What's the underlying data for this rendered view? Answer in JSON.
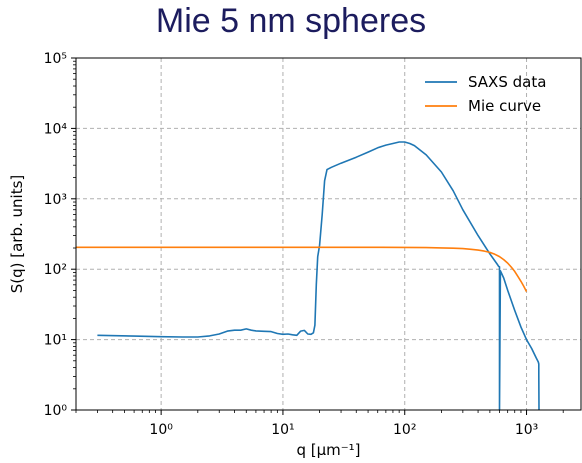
{
  "chart_data": {
    "type": "line",
    "title": "Mie 5 nm spheres",
    "xlabel": "q [μm⁻¹]",
    "ylabel": "S(q) [arb. units]",
    "xscale": "log",
    "yscale": "log",
    "xlim": [
      0.2,
      2800
    ],
    "ylim": [
      1,
      100000
    ],
    "grid": true,
    "legend_position": "top-right",
    "x_ticks": [
      {
        "value": 1,
        "label": "10⁰"
      },
      {
        "value": 10,
        "label": "10¹"
      },
      {
        "value": 100,
        "label": "10²"
      },
      {
        "value": 1000,
        "label": "10³"
      }
    ],
    "y_ticks": [
      {
        "value": 1,
        "label": "10⁰"
      },
      {
        "value": 10,
        "label": "10¹"
      },
      {
        "value": 100,
        "label": "10²"
      },
      {
        "value": 1000,
        "label": "10³"
      },
      {
        "value": 10000,
        "label": "10⁴"
      },
      {
        "value": 100000,
        "label": "10⁵"
      }
    ],
    "series": [
      {
        "name": "SAXS data",
        "color": "#1f77b4",
        "x": [
          0.3,
          0.6,
          1.0,
          1.5,
          2.0,
          2.5,
          3.0,
          3.5,
          4.0,
          4.5,
          5.0,
          5.5,
          6.0,
          7.0,
          8.0,
          9.0,
          10,
          11,
          12,
          13,
          14,
          15,
          16,
          17,
          17.8,
          18.3,
          18.8,
          19.3,
          20,
          21,
          22,
          23,
          25,
          30,
          40,
          50,
          60,
          70,
          80,
          90,
          100,
          110,
          120,
          150,
          200,
          250,
          300,
          400,
          500,
          580,
          590,
          600,
          600,
          610,
          650,
          700,
          800,
          900,
          1000,
          1100,
          1200,
          1250,
          1260,
          1260,
          1265
        ],
        "y": [
          11.5,
          11.2,
          11.0,
          10.9,
          10.9,
          11.3,
          12.0,
          13.2,
          13.6,
          13.6,
          14.2,
          13.6,
          13.3,
          13.1,
          13.0,
          12.2,
          11.9,
          12.0,
          11.7,
          11.5,
          13.2,
          13.5,
          12.0,
          11.9,
          12.5,
          16.0,
          60,
          150,
          220,
          600,
          1800,
          2600,
          2800,
          3200,
          3900,
          4600,
          5300,
          5800,
          6100,
          6400,
          6400,
          6100,
          5700,
          4200,
          2400,
          1300,
          700,
          300,
          165,
          115,
          110,
          108,
          1,
          95,
          75,
          50,
          26,
          15,
          10,
          7.5,
          5.5,
          4.8,
          4.5,
          3.2,
          1
        ]
      },
      {
        "name": "Mie curve",
        "color": "#ff7f0e",
        "x": [
          0.2,
          1,
          10,
          50,
          100,
          150,
          200,
          250,
          300,
          350,
          400,
          450,
          500,
          550,
          600,
          650,
          700,
          750,
          800,
          850,
          900,
          950,
          1000
        ],
        "y": [
          205,
          205,
          205,
          205,
          204,
          203,
          201,
          199,
          196,
          192,
          187,
          181,
          173,
          163,
          151,
          137,
          122,
          107,
          93,
          79,
          67,
          57,
          48
        ]
      }
    ]
  }
}
